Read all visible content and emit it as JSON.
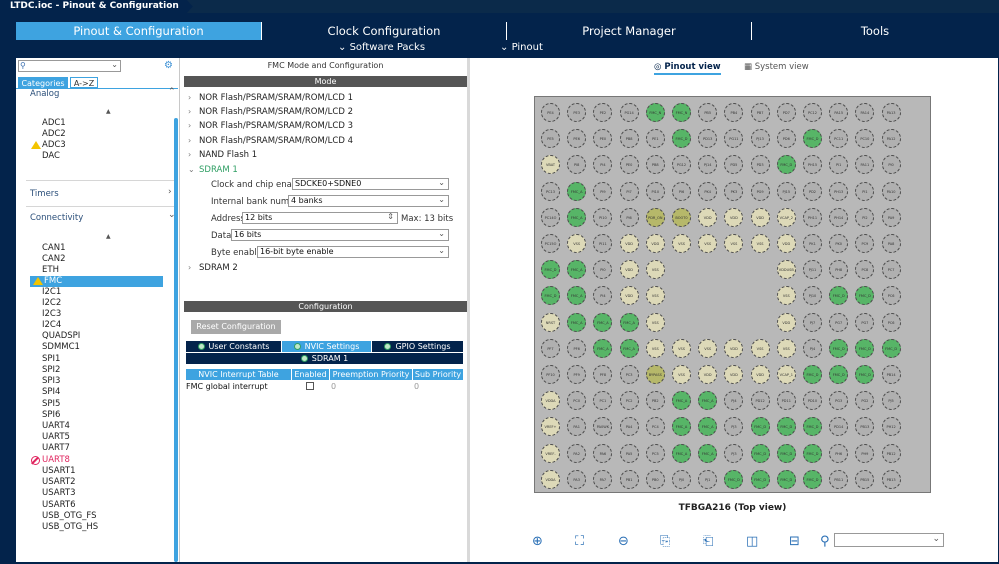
{
  "window": {
    "breadcrumb": "LTDC.ioc - Pinout & Configuration"
  },
  "tabs": [
    "Pinout & Configuration",
    "Clock Configuration",
    "Project Manager",
    "Tools"
  ],
  "subtabs": {
    "software_packs": "Software Packs",
    "pinout": "Pinout"
  },
  "left": {
    "categories_tab": "Categories",
    "az_tab": "A->Z",
    "analog_label": "Analog",
    "analog_items": [
      "ADC1",
      "ADC2",
      "ADC3",
      "DAC"
    ],
    "timers_label": "Timers",
    "connectivity_label": "Connectivity",
    "conn_items": [
      "CAN1",
      "CAN2",
      "ETH",
      "FMC",
      "I2C1",
      "I2C2",
      "I2C3",
      "I2C4",
      "QUADSPI",
      "SDMMC1",
      "SPI1",
      "SPI2",
      "SPI3",
      "SPI4",
      "SPI5",
      "SPI6",
      "UART4",
      "UART5",
      "UART7",
      "UART8",
      "USART1",
      "USART2",
      "USART3",
      "USART6",
      "USB_OTG_FS",
      "USB_OTG_HS"
    ]
  },
  "fmc": {
    "panel_title": "FMC Mode and Configuration",
    "mode_header": "Mode",
    "modes": [
      "NOR Flash/PSRAM/SRAM/ROM/LCD 1",
      "NOR Flash/PSRAM/SRAM/ROM/LCD 2",
      "NOR Flash/PSRAM/SRAM/ROM/LCD 3",
      "NOR Flash/PSRAM/SRAM/ROM/LCD 4",
      "NAND Flash 1",
      "SDRAM 1",
      "SDRAM 2"
    ],
    "fields": {
      "clock_label": "Clock and chip enable",
      "clock_value": "SDCKE0+SDNE0",
      "bank_label": "Internal bank number",
      "bank_value": "4 banks",
      "address_label": "Address",
      "address_value": "12 bits",
      "address_max": "Max: 13 bits",
      "data_label": "Data",
      "data_value": "16 bits",
      "byte_label": "Byte enable",
      "byte_value": "16-bit byte enable"
    },
    "config_header": "Configuration",
    "reset_button": "Reset Configuration",
    "config_tabs": [
      "User Constants",
      "NVIC Settings",
      "GPIO Settings",
      "SDRAM 1"
    ],
    "nvic_headers": [
      "NVIC Interrupt Table",
      "Enabled",
      "Preemption Priority",
      "Sub Priority"
    ],
    "nvic_row": {
      "name": "FMC global interrupt",
      "preempt": "0",
      "sub": "0"
    }
  },
  "pinout": {
    "pinout_view": "Pinout view",
    "system_view": "System view",
    "chip_label": "TFBGA216 (Top view)",
    "colors": {
      "green": "#57b567",
      "olive": "#b6b86a",
      "tan": "#ddd9b8",
      "gray": "#b0b0b0"
    },
    "pins": [
      [
        "PE4",
        "PE3",
        "PE2",
        "PG14",
        "FMC_N",
        "FMC_N",
        "PB5",
        "PB4",
        "PB7",
        "PD7",
        "PC12",
        "PA15",
        "PA14",
        "PA13"
      ],
      [
        "PE5",
        "PE6",
        "PE0",
        "PB8",
        "PE1",
        "FMC_D",
        "PD13",
        "PG11",
        "PJ13",
        "PD6",
        "FMC_D",
        "PC11",
        "PC10",
        "PA12"
      ],
      [
        "VBAT",
        "PI8",
        "PI4",
        "PE0",
        "PB8",
        "PG12",
        "PJ14",
        "PD5",
        "PD3",
        "FMC_D",
        "PH15",
        "PI1",
        "PA11",
        "PI0"
      ],
      [
        "PC13",
        "FMC_A",
        "PI9",
        "PI7",
        "PI10",
        "PI6",
        "PK4",
        "PK3",
        "PG9",
        "PJ15",
        "PD2",
        "PH13",
        "PI1",
        "PA10"
      ],
      [
        "PC14O",
        "FMC_A",
        "PI10",
        "PI6",
        "PDR_ON",
        "BOOT0",
        "VDD",
        "VDD",
        "VDD",
        "VCAP_2",
        "PH11",
        "PH14",
        "PI2",
        "PA9"
      ],
      [
        "PC15O",
        "VSS",
        "PI11",
        "VDD",
        "VDD",
        "VSS",
        "VSS",
        "VSS",
        "VSS",
        "VDD",
        "PK1",
        "PK0",
        "PC9",
        "PA8"
      ],
      [
        "FMC_D",
        "FMC_A",
        "PI0",
        "VDD",
        "VSS",
        "",
        "",
        "",
        "",
        "VDDUSB",
        "PJ11",
        "PH8",
        "PC8",
        "PC7"
      ],
      [
        "FMC_D",
        "FMC_A",
        "PI4",
        "VDD",
        "VSS",
        "",
        "",
        "",
        "",
        "VSS",
        "PJ10",
        "FMC_D",
        "FMC_D",
        "PC6"
      ],
      [
        "NRST",
        "FMC_A",
        "FMC_A",
        "FMC_A",
        "VSS",
        "",
        "",
        "",
        "",
        "VDD",
        "PJ7",
        "PG7",
        "PG7",
        "PC6"
      ],
      [
        "PF7",
        "PF6",
        "FMC_A",
        "FMC_A",
        "VSS",
        "VSS",
        "VSS",
        "VDD",
        "VSS",
        "VSS",
        "PJ4",
        "FMC_D",
        "FMC_D",
        "FMC_D"
      ],
      [
        "PF10",
        "PF9",
        "PF8",
        "PC3",
        "BYPASS",
        "VSS",
        "VDD",
        "VDD",
        "VDD",
        "VCAP_1",
        "FMC_D",
        "FMC_D",
        "FMC_D",
        "PB14"
      ],
      [
        "VDDA",
        "PC0",
        "PC1",
        "PC2",
        "PB2",
        "FMC_A",
        "FMC_A",
        "PJ4",
        "PD12",
        "PD11",
        "PD10",
        "PG3",
        "PG2",
        "PJ5"
      ],
      [
        "VREF+",
        "PA1",
        "PA0WK",
        "PA4",
        "PC4",
        "FMC_A",
        "FMC_A",
        "PJ3",
        "FMC_D",
        "FMC_D",
        "FMC_D",
        "PD14",
        "PB13",
        "PH12"
      ],
      [
        "VREF-",
        "PA2",
        "PA6",
        "PA5",
        "PC5",
        "FMC_A",
        "FMC_A",
        "PJ3",
        "FMC_D",
        "FMC_D",
        "FMC_D",
        "PH6",
        "PH9",
        "PB12"
      ],
      [
        "VDDA",
        "PA3",
        "PA7",
        "PB1",
        "PB0",
        "PJ0",
        "PJ1",
        "FMC_D",
        "FMC_D",
        "FMC_D",
        "FMC_D",
        "PB11",
        "PB15",
        "PB13"
      ]
    ]
  }
}
